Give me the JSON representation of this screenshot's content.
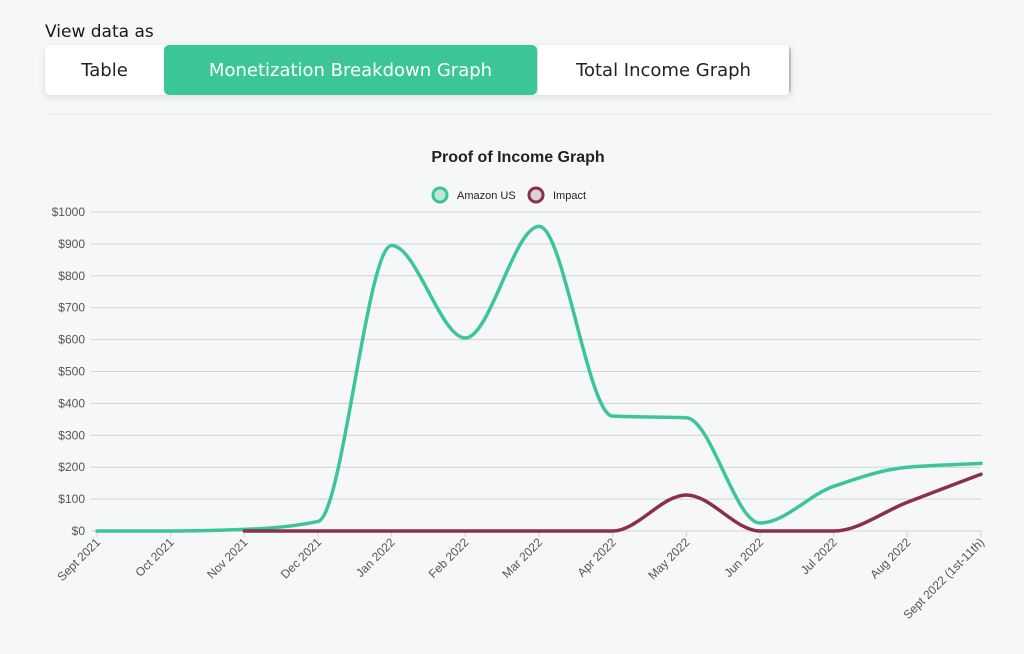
{
  "header": {
    "view_label": "View data as",
    "tabs": [
      {
        "label": "Table"
      },
      {
        "label": "Monetization Breakdown Graph",
        "selected": true
      },
      {
        "label": "Total Income Graph"
      }
    ]
  },
  "colors": {
    "accent": "#3cc697",
    "amazon": "#3cc697",
    "impact": "#8b3049",
    "grid": "#cfd1d6"
  },
  "chart_data": {
    "type": "line",
    "title": "Proof of Income Graph",
    "categories": [
      "Sept 2021",
      "Oct 2021",
      "Nov 2021",
      "Dec 2021",
      "Jan 2022",
      "Feb 2022",
      "Mar 2022",
      "Apr 2022",
      "May 2022",
      "Jun 2022",
      "Jul 2022",
      "Aug 2022",
      "Sept 2022 (1st-11th)"
    ],
    "y_ticks": [
      "$0",
      "$100",
      "$200",
      "$300",
      "$400",
      "$500",
      "$600",
      "$700",
      "$800",
      "$900",
      "$1000"
    ],
    "ylim": [
      0,
      1000
    ],
    "grid": true,
    "legend": "top-center",
    "series": [
      {
        "name": "Amazon US",
        "color": "#3cc697",
        "values": [
          0,
          0,
          5,
          30,
          895,
          605,
          955,
          360,
          355,
          25,
          140,
          200,
          212
        ]
      },
      {
        "name": "Impact",
        "color": "#8b3049",
        "values": [
          null,
          null,
          0,
          0,
          0,
          0,
          0,
          0,
          113,
          0,
          0,
          90,
          178
        ]
      }
    ]
  }
}
